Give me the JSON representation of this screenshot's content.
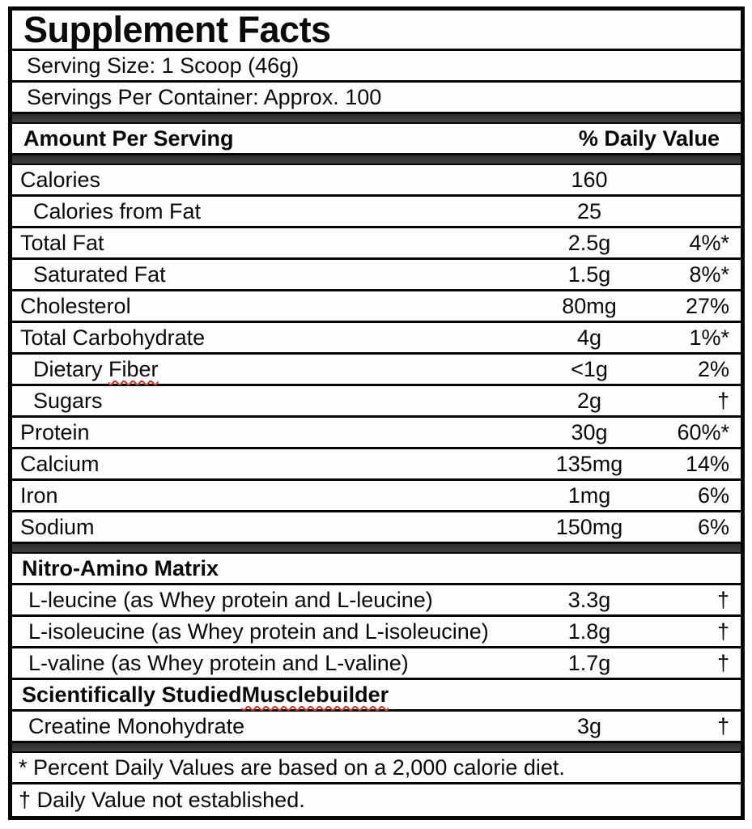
{
  "label": {
    "colors": {
      "border": "#060606",
      "separator_bar": "#3a3a3a",
      "text": "#0a0a0a",
      "spellcheck_underline": "#cc3322",
      "background": "#fefefe"
    }
  },
  "rows": [
    {
      "type": "title",
      "text": "Supplement Facts"
    },
    {
      "type": "serving",
      "text": "Serving Size: 1 Scoop (46g)"
    },
    {
      "type": "serving",
      "text": "Servings Per Container: Approx. 100"
    },
    {
      "type": "bar"
    },
    {
      "type": "header",
      "left": "Amount Per Serving",
      "right": "% Daily Value"
    },
    {
      "type": "bar"
    },
    {
      "type": "item",
      "name": "Calories",
      "amount": "160",
      "dv": ""
    },
    {
      "type": "item",
      "name": "Calories from Fat",
      "amount": "25",
      "dv": "",
      "indent": true
    },
    {
      "type": "item",
      "name": "Total Fat",
      "amount": "2.5g",
      "dv": "4%*"
    },
    {
      "type": "item",
      "name": "Saturated Fat",
      "amount": "1.5g",
      "dv": "8%*",
      "indent": true
    },
    {
      "type": "item",
      "name": "Cholesterol",
      "amount": "80mg",
      "dv": "27%"
    },
    {
      "type": "item",
      "name": "Total Carbohydrate",
      "amount": "4g",
      "dv": "1%*"
    },
    {
      "type": "item",
      "name": "Dietary ",
      "wavy": "Fiber",
      "amount": "<1g",
      "dv": "2%",
      "indent": true
    },
    {
      "type": "item",
      "name": "Sugars",
      "amount": "2g",
      "dv": "†",
      "indent": true
    },
    {
      "type": "item",
      "name": "Protein",
      "amount": "30g",
      "dv": "60%*"
    },
    {
      "type": "item",
      "name": "Calcium",
      "amount": "135mg",
      "dv": "14%"
    },
    {
      "type": "item",
      "name": "Iron",
      "amount": "1mg",
      "dv": "6%"
    },
    {
      "type": "item",
      "name": "Sodium",
      "amount": "150mg",
      "dv": "6%"
    },
    {
      "type": "bar"
    },
    {
      "type": "section",
      "text": "Nitro-Amino Matrix"
    },
    {
      "type": "item",
      "name": "L-leucine (as Whey protein and L-leucine)",
      "amount": "3.3g",
      "dv": "†",
      "amino": true
    },
    {
      "type": "item",
      "name": "L-isoleucine (as Whey protein and L-isoleucine)",
      "amount": "1.8g",
      "dv": "†",
      "amino": true
    },
    {
      "type": "item",
      "name": "L-valine (as Whey protein and L-valine)",
      "amount": "1.7g",
      "dv": "†",
      "amino": true
    },
    {
      "type": "section",
      "text": "Scientifically Studied ",
      "wavy": "Musclebuilder"
    },
    {
      "type": "item",
      "name": "Creatine Monohydrate",
      "amount": "3g",
      "dv": "†",
      "amino": true
    },
    {
      "type": "bar"
    },
    {
      "type": "footnote",
      "text": "* Percent Daily Values are based on a 2,000 calorie diet."
    },
    {
      "type": "footnote",
      "text": "† Daily Value not established."
    }
  ]
}
